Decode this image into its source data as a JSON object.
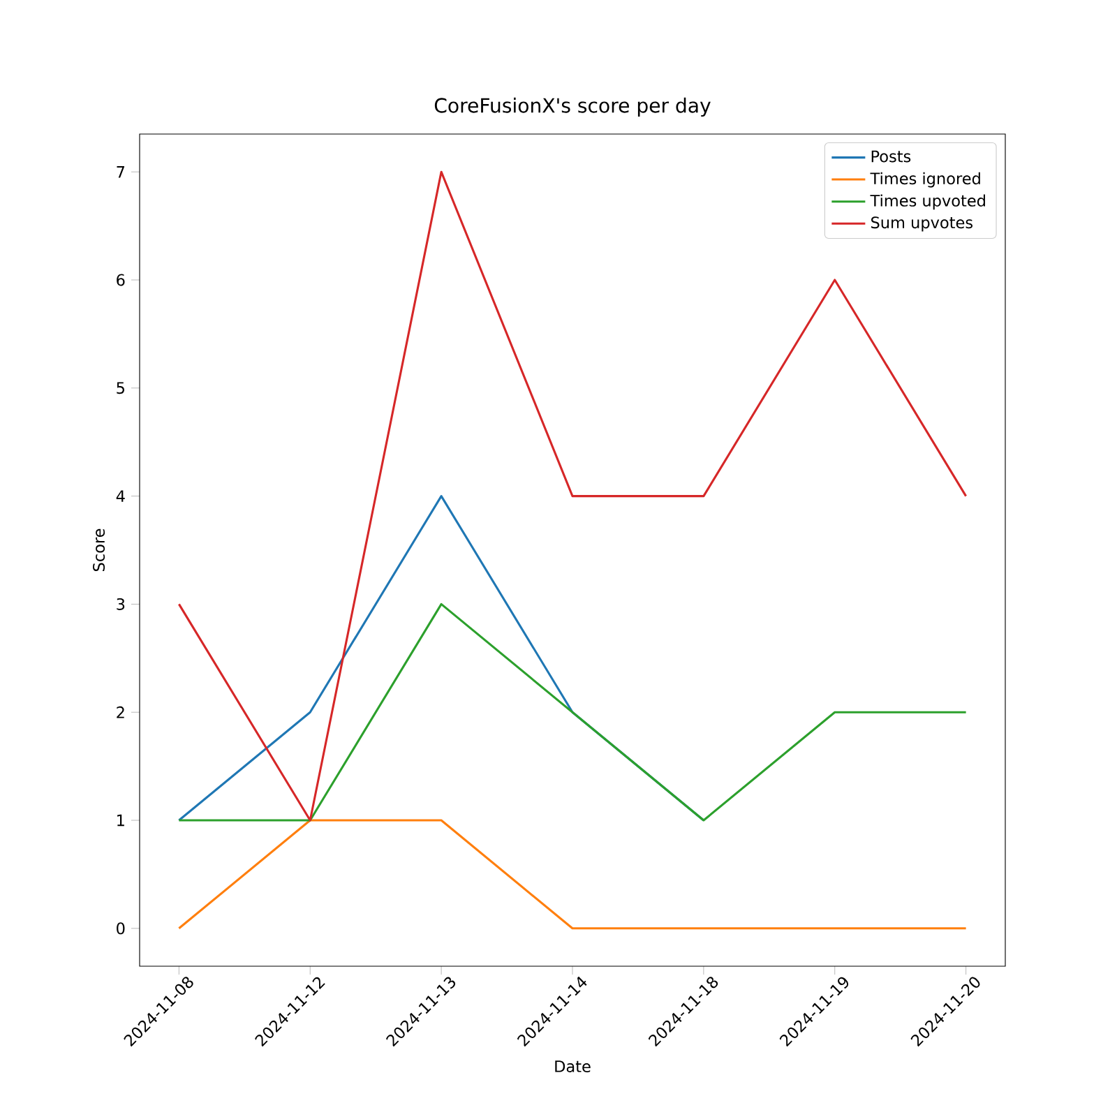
{
  "chart_data": {
    "type": "line",
    "title": "CoreFusionX's score per day",
    "xlabel": "Date",
    "ylabel": "Score",
    "categories": [
      "2024-11-08",
      "2024-11-12",
      "2024-11-13",
      "2024-11-14",
      "2024-11-18",
      "2024-11-19",
      "2024-11-20"
    ],
    "series": [
      {
        "name": "Posts",
        "color": "#1f77b4",
        "values": [
          1,
          2,
          4,
          2,
          1,
          null,
          null
        ]
      },
      {
        "name": "Times ignored",
        "color": "#ff7f0e",
        "values": [
          0,
          1,
          1,
          0,
          0,
          0,
          0
        ]
      },
      {
        "name": "Times upvoted",
        "color": "#2ca02c",
        "values": [
          1,
          1,
          3,
          2,
          1,
          2,
          2
        ]
      },
      {
        "name": "Sum upvotes",
        "color": "#d62728",
        "values": [
          3,
          1,
          7,
          4,
          4,
          6,
          4
        ]
      }
    ],
    "ylim": [
      -0.35,
      7.35
    ],
    "yticks": [
      0,
      1,
      2,
      3,
      4,
      5,
      6,
      7
    ],
    "grid": false,
    "legend": "top right",
    "marker": "none",
    "line_style": "solid"
  }
}
